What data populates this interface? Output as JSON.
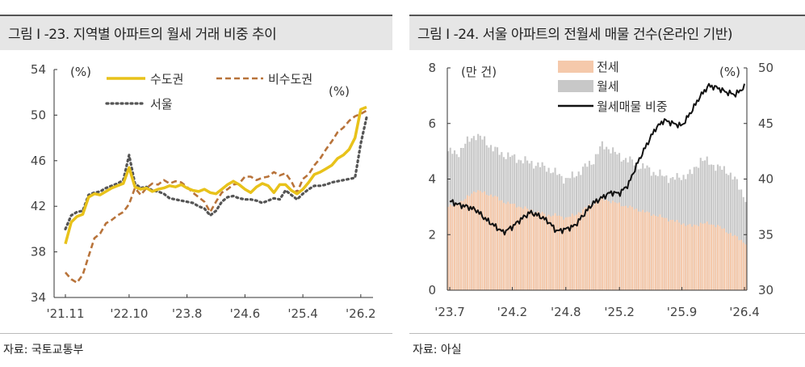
{
  "left": {
    "title": "그림 I -23. 지역별 아파트의 월세 거래 비중 추이",
    "source": "자료: 국토교통부",
    "chart_data": {
      "type": "line",
      "unit_left": "(%)",
      "unit_right": "(%)",
      "ylim": [
        34,
        54
      ],
      "yticks": [
        "54",
        "50",
        "46",
        "42",
        "38",
        "34"
      ],
      "xticks": [
        "'21.11",
        "'22.10",
        "'23.8",
        "'24.6",
        "'25.4",
        "'26.2"
      ],
      "x": [
        "21.11",
        "21.12",
        "22.1",
        "22.2",
        "22.3",
        "22.4",
        "22.5",
        "22.6",
        "22.7",
        "22.8",
        "22.9",
        "22.10",
        "22.11",
        "22.12",
        "23.1",
        "23.2",
        "23.3",
        "23.4",
        "23.5",
        "23.6",
        "23.7",
        "23.8",
        "23.9",
        "23.10",
        "23.11",
        "23.12",
        "24.1",
        "24.2",
        "24.3",
        "24.4",
        "24.5",
        "24.6",
        "24.7",
        "24.8",
        "24.9",
        "24.10",
        "24.11",
        "24.12",
        "25.1",
        "25.2",
        "25.3",
        "25.4",
        "25.5",
        "25.6",
        "25.7",
        "25.8",
        "25.9",
        "25.10",
        "25.11",
        "25.12",
        "26.1",
        "26.2",
        "26.3"
      ],
      "series": [
        {
          "name": "수도권",
          "color": "#e8c21a",
          "style": "solid",
          "values": [
            38.7,
            40.6,
            41.1,
            41.3,
            42.8,
            43.1,
            43.0,
            43.3,
            43.6,
            43.8,
            44.0,
            45.4,
            43.7,
            43.5,
            43.6,
            43.3,
            43.5,
            43.6,
            43.8,
            43.7,
            43.9,
            43.6,
            43.4,
            43.3,
            43.5,
            43.2,
            43.1,
            43.5,
            43.9,
            44.2,
            43.9,
            43.5,
            43.2,
            43.7,
            44.0,
            43.8,
            43.2,
            43.9,
            43.9,
            43.4,
            43.1,
            43.5,
            44.1,
            44.8,
            45.0,
            45.3,
            45.6,
            46.2,
            46.5,
            47.0,
            48.0,
            50.5,
            50.7
          ]
        },
        {
          "name": "비수도권",
          "color": "#b8733a",
          "style": "dash",
          "values": [
            36.2,
            35.6,
            35.3,
            36.0,
            37.6,
            39.2,
            39.6,
            40.5,
            40.8,
            41.2,
            41.5,
            42.2,
            43.6,
            43.0,
            43.6,
            44.0,
            43.9,
            44.3,
            44.0,
            44.2,
            44.1,
            43.7,
            43.2,
            42.8,
            42.4,
            41.5,
            42.4,
            43.2,
            43.5,
            43.9,
            44.0,
            44.6,
            44.6,
            44.3,
            44.5,
            44.6,
            45.0,
            44.7,
            44.9,
            44.2,
            43.2,
            44.4,
            44.8,
            45.6,
            46.2,
            47.0,
            47.7,
            48.5,
            48.9,
            49.5,
            49.9,
            50.1,
            50.4
          ]
        },
        {
          "name": "서울",
          "color": "#555555",
          "style": "dot",
          "values": [
            40.0,
            41.2,
            41.5,
            41.6,
            43.0,
            43.2,
            43.3,
            43.6,
            43.8,
            44.0,
            44.3,
            46.5,
            44.0,
            43.6,
            43.7,
            43.4,
            43.3,
            43.1,
            42.7,
            42.6,
            42.5,
            42.4,
            42.3,
            42.0,
            41.8,
            41.2,
            41.6,
            42.4,
            42.8,
            42.9,
            42.7,
            42.6,
            42.6,
            42.5,
            42.3,
            42.5,
            42.7,
            42.6,
            43.4,
            43.0,
            42.6,
            43.1,
            43.5,
            43.8,
            43.8,
            43.9,
            44.1,
            44.2,
            44.3,
            44.4,
            44.5,
            47.5,
            49.8
          ]
        }
      ]
    }
  },
  "right": {
    "title": "그림 I -24. 서울 아파트의 전월세 매물 건수(온라인 기반)",
    "source": "자료: 아실",
    "chart_data": {
      "type": "area",
      "unit_left": "(만 건)",
      "unit_right": "(%)",
      "ylim_left": [
        0,
        8
      ],
      "ylim_right": [
        30,
        50
      ],
      "yticks_left": [
        "8",
        "6",
        "4",
        "2",
        "0"
      ],
      "yticks_right": [
        "50",
        "45",
        "40",
        "35",
        "30"
      ],
      "xticks": [
        "'23.7",
        "'24.2",
        "'24.8",
        "'25.2",
        "'25.9",
        "'26.4"
      ],
      "x_months": [
        "23.7",
        "23.8",
        "23.9",
        "23.10",
        "23.11",
        "23.12",
        "24.1",
        "24.2",
        "24.3",
        "24.4",
        "24.5",
        "24.6",
        "24.7",
        "24.8",
        "24.9",
        "24.10",
        "24.11",
        "24.12",
        "25.1",
        "25.2",
        "25.3",
        "25.4",
        "25.5",
        "25.6",
        "25.7",
        "25.8",
        "25.9",
        "25.10",
        "25.11",
        "25.12",
        "26.1",
        "26.2",
        "26.3",
        "26.4"
      ],
      "series": [
        {
          "name": "전세",
          "color": "#f5c9ab",
          "values": [
            3.0,
            3.1,
            3.3,
            3.6,
            3.5,
            3.4,
            3.2,
            3.1,
            3.0,
            2.9,
            2.8,
            2.7,
            2.7,
            2.6,
            2.7,
            2.9,
            3.1,
            3.3,
            3.2,
            3.1,
            3.0,
            2.9,
            2.8,
            2.7,
            2.6,
            2.5,
            2.4,
            2.3,
            2.4,
            2.4,
            2.3,
            2.1,
            1.9,
            1.7
          ]
        },
        {
          "name": "월세",
          "color": "#c8c8c8",
          "values": [
            5.0,
            4.9,
            5.3,
            5.6,
            5.4,
            5.1,
            4.9,
            4.8,
            4.7,
            4.6,
            4.5,
            4.4,
            4.2,
            4.0,
            4.1,
            4.4,
            4.6,
            5.2,
            5.1,
            4.8,
            4.7,
            4.5,
            4.4,
            4.2,
            4.1,
            4.0,
            4.1,
            4.2,
            4.7,
            4.6,
            4.4,
            4.3,
            3.9,
            3.3
          ]
        },
        {
          "name": "월세매물 비중",
          "color": "#111111",
          "axis": "right",
          "values": [
            38.0,
            37.7,
            37.5,
            37.2,
            36.4,
            35.8,
            35.2,
            35.7,
            36.4,
            37.0,
            36.7,
            36.2,
            35.3,
            35.5,
            35.8,
            36.8,
            37.8,
            38.3,
            38.8,
            38.7,
            39.5,
            41.4,
            43.0,
            44.5,
            45.3,
            45.0,
            44.8,
            46.0,
            47.4,
            48.4,
            48.2,
            47.8,
            47.6,
            48.3
          ]
        }
      ]
    }
  }
}
